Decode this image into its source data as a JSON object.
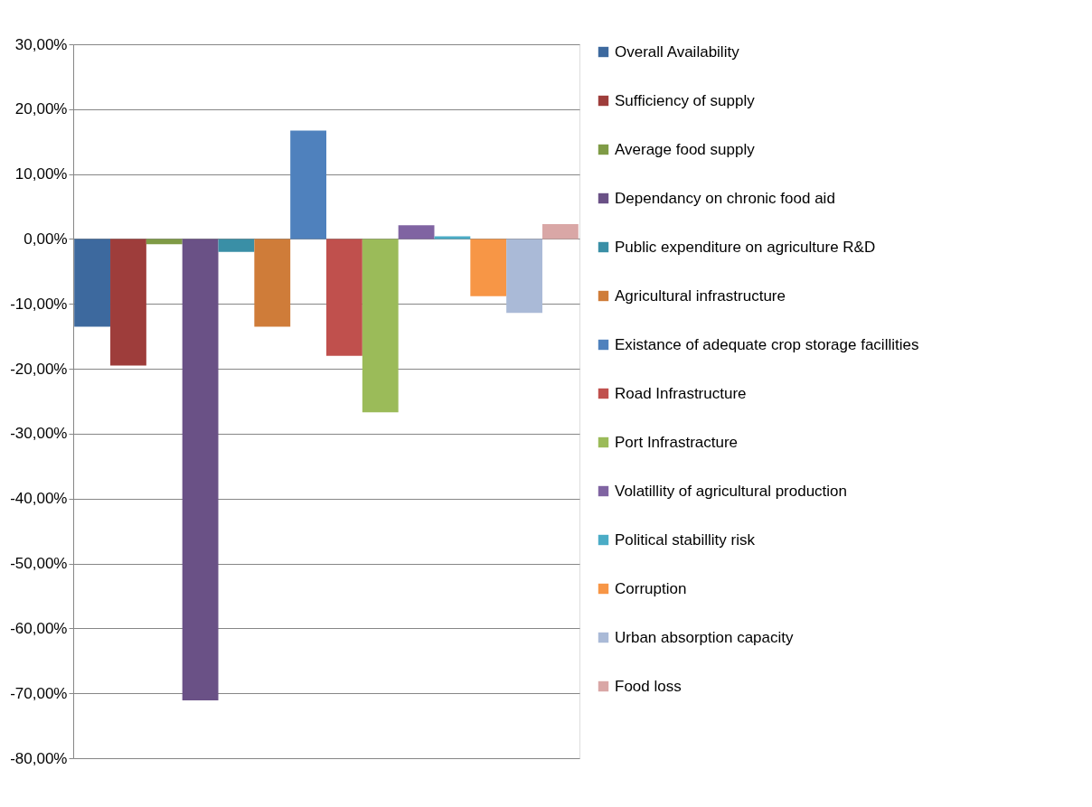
{
  "chart_data": {
    "type": "bar",
    "categories": [
      null
    ],
    "series": [
      {
        "name": "Overall Availability",
        "color": "#3d699e",
        "values": [
          -13.5
        ]
      },
      {
        "name": "Sufficiency of supply",
        "color": "#9e3d3b",
        "values": [
          -19.5
        ]
      },
      {
        "name": "Average food supply",
        "color": "#7f9b46",
        "values": [
          -0.8
        ]
      },
      {
        "name": "Dependancy on chronic food aid",
        "color": "#6a5186",
        "values": [
          -71.1
        ]
      },
      {
        "name": "Public expenditure on agriculture R&D",
        "color": "#3a8fa6",
        "values": [
          -2.0
        ]
      },
      {
        "name": "Agricultural infrastructure",
        "color": "#cf7c39",
        "values": [
          -13.5
        ]
      },
      {
        "name": "Existance of adequate crop storage facillities",
        "color": "#4f81bd",
        "values": [
          16.7
        ]
      },
      {
        "name": "Road Infrastructure",
        "color": "#c0504d",
        "values": [
          -18.0
        ]
      },
      {
        "name": "Port Infrastracture",
        "color": "#9bbb59",
        "values": [
          -26.7
        ]
      },
      {
        "name": "Volatillity of agricultural production",
        "color": "#8064a2",
        "values": [
          2.1
        ]
      },
      {
        "name": "Political stabillity risk",
        "color": "#4bacc6",
        "values": [
          0.4
        ]
      },
      {
        "name": "Corruption",
        "color": "#f79646",
        "values": [
          -8.8
        ]
      },
      {
        "name": "Urban absorption capacity",
        "color": "#aabad7",
        "values": [
          -11.4
        ]
      },
      {
        "name": "Food loss",
        "color": "#d9a7a6",
        "values": [
          2.3
        ]
      }
    ],
    "ylim": [
      -80,
      30
    ],
    "yticks": [
      {
        "value": -80,
        "label": "-80,00%"
      },
      {
        "value": -70,
        "label": "-70,00%"
      },
      {
        "value": -60,
        "label": "-60,00%"
      },
      {
        "value": -50,
        "label": "-50,00%"
      },
      {
        "value": -40,
        "label": "-40,00%"
      },
      {
        "value": -30,
        "label": "-30,00%"
      },
      {
        "value": -20,
        "label": "-20,00%"
      },
      {
        "value": -10,
        "label": "-10,00%"
      },
      {
        "value": 0,
        "label": "0,00%"
      },
      {
        "value": 10,
        "label": "10,00%"
      },
      {
        "value": 20,
        "label": "20,00%"
      },
      {
        "value": 30,
        "label": "30,00%"
      }
    ],
    "grid": "y",
    "legend": "right",
    "tick_labels": "y"
  }
}
